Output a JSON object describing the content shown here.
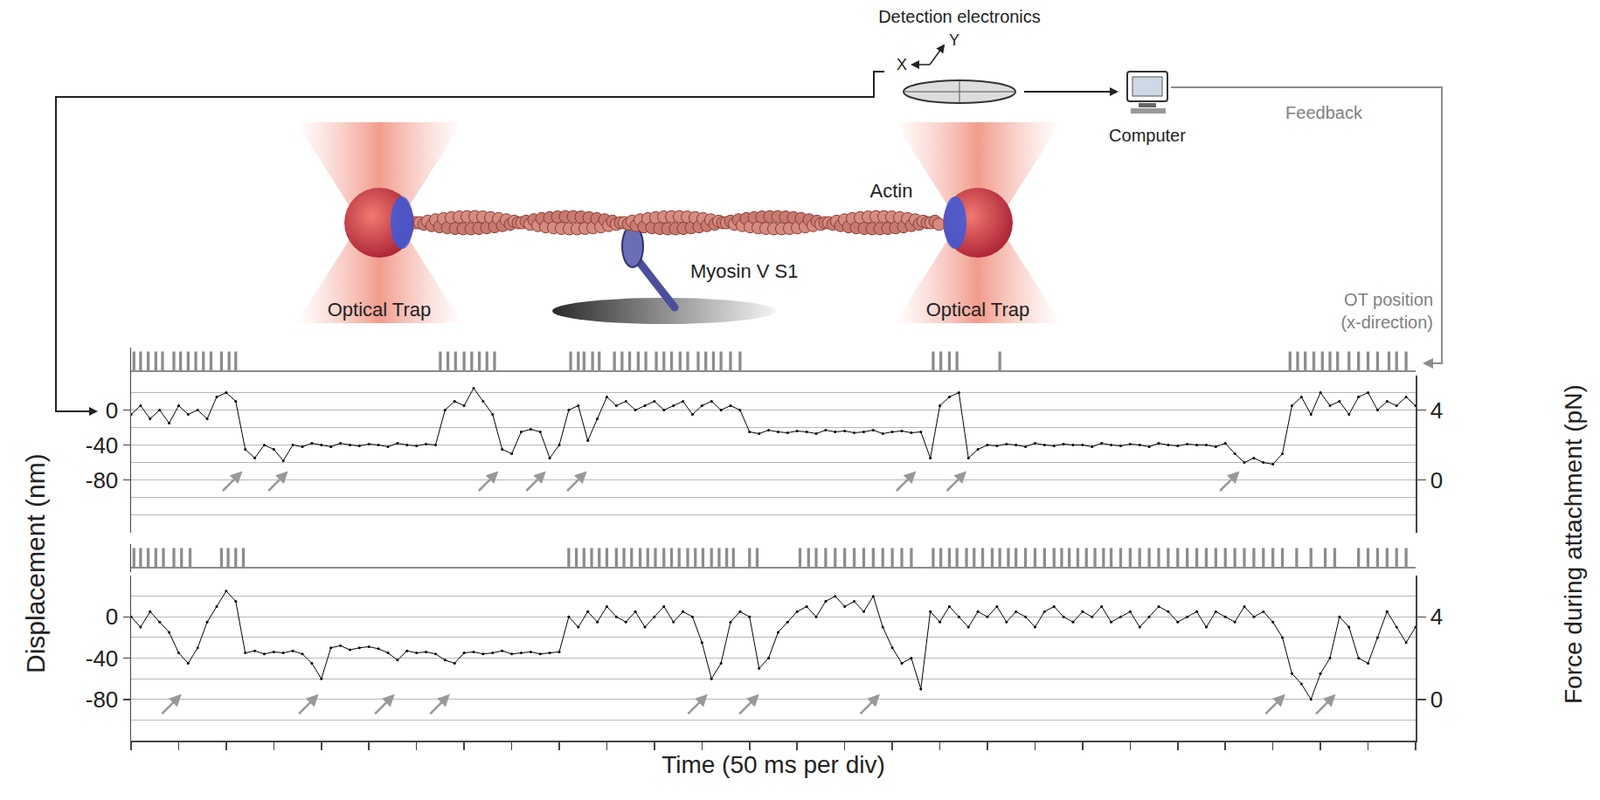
{
  "chart_data": {
    "type": "scatter",
    "xlabel": "Time (50 ms per div)",
    "ylabel": "Displacement (nm)",
    "y2label": "Force during attachment (pN)",
    "xlim": [
      0,
      1350
    ],
    "xticks": [
      0,
      50,
      100,
      150,
      200,
      250,
      300,
      350,
      400,
      450,
      500,
      550,
      600,
      650,
      700,
      750,
      800,
      850,
      900,
      950,
      1000,
      1050,
      1100,
      1150,
      1200,
      1250,
      1300,
      1350
    ],
    "tick_labels": "y",
    "grid": true,
    "panels": [
      {
        "ylim": [
          -140,
          40
        ],
        "yticks": [
          -80,
          -40,
          0
        ],
        "y2lim": [
          -3,
          6
        ],
        "y2ticks": [
          0,
          4
        ],
        "y3lim": [
          -0.2,
          1.2
        ],
        "series": [
          {
            "color": "#000000",
            "marker": "dot",
            "line_style": "solid",
            "x": [
              0,
              10,
              20,
              30,
              40,
              50,
              60,
              70,
              80,
              90,
              100,
              110,
              120,
              130,
              140,
              150,
              160,
              170,
              180,
              190,
              200,
              210,
              220,
              230,
              240,
              250,
              260,
              270,
              280,
              290,
              300,
              310,
              320,
              330,
              340,
              350,
              360,
              370,
              380,
              390,
              400,
              410,
              420,
              430,
              440,
              450,
              460,
              470,
              480,
              490,
              500,
              510,
              520,
              530,
              540,
              550,
              560,
              570,
              580,
              590,
              600,
              610,
              620,
              630,
              640,
              650,
              660,
              670,
              680,
              690,
              700,
              710,
              720,
              730,
              740,
              750,
              760,
              770,
              780,
              790,
              800,
              810,
              820,
              830,
              840,
              850,
              860,
              870,
              880,
              890,
              900,
              910,
              920,
              930,
              940,
              950,
              960,
              970,
              980,
              990,
              1000,
              1010,
              1020,
              1030,
              1040,
              1050,
              1060,
              1070,
              1080,
              1090,
              1100,
              1110,
              1120,
              1130,
              1140,
              1150,
              1160,
              1170,
              1180,
              1190,
              1200,
              1210,
              1220,
              1230,
              1240,
              1250,
              1260,
              1270,
              1280,
              1290,
              1300,
              1310,
              1320,
              1330,
              1340,
              1350
            ],
            "values": [
              -5,
              5,
              -10,
              0,
              -15,
              5,
              -5,
              0,
              -10,
              15,
              20,
              10,
              -45,
              -55,
              -40,
              -45,
              -58,
              -40,
              -42,
              -38,
              -40,
              -42,
              -38,
              -40,
              -41,
              -39,
              -40,
              -42,
              -38,
              -40,
              -41,
              -39,
              -40,
              0,
              10,
              5,
              25,
              10,
              -5,
              -45,
              -50,
              -25,
              -22,
              -25,
              -55,
              -40,
              0,
              5,
              -35,
              -10,
              15,
              5,
              10,
              0,
              5,
              10,
              0,
              5,
              10,
              -5,
              5,
              10,
              0,
              5,
              0,
              -25,
              -27,
              -23,
              -25,
              -26,
              -24,
              -25,
              -27,
              -23,
              -25,
              -24,
              -26,
              -25,
              -23,
              -27,
              -25,
              -24,
              -26,
              -25,
              -55,
              5,
              15,
              20,
              -55,
              -45,
              -40,
              -41,
              -39,
              -40,
              -42,
              -38,
              -40,
              -41,
              -39,
              -40,
              -40,
              -42,
              -38,
              -40,
              -41,
              -39,
              -40,
              -42,
              -38,
              -40,
              -41,
              -39,
              -40,
              -40,
              -42,
              -38,
              -50,
              -60,
              -55,
              -60,
              -62,
              -50,
              5,
              15,
              -5,
              20,
              5,
              10,
              -5,
              15,
              20,
              0,
              10,
              5,
              15,
              5
            ]
          },
          {
            "type": "bar",
            "color": "#8c8c8c",
            "x": [
              3,
              10,
              18,
              26,
              33,
              45,
              52,
              60,
              68,
              76,
              84,
              95,
              103,
              110,
              325,
              333,
              341,
              350,
              358,
              366,
              374,
              382,
              462,
              470,
              476,
              485,
              492,
              508,
              516,
              524,
              533,
              541,
              552,
              560,
              568,
              577,
              585,
              596,
              604,
              612,
              620,
              630,
              640,
              843,
              851,
              860,
              868,
              913,
              1218,
              1226,
              1234,
              1243,
              1252,
              1260,
              1268,
              1280,
              1290,
              1300,
              1310,
              1322,
              1330,
              1340
            ],
            "values": [
              1,
              1,
              1,
              1,
              1,
              1,
              1,
              1,
              1,
              1,
              1,
              1,
              1,
              1,
              1,
              1,
              1,
              1,
              1,
              1,
              1,
              1,
              1,
              1,
              1,
              1,
              1,
              1,
              1,
              1,
              1,
              1,
              1,
              1,
              1,
              1,
              1,
              1,
              1,
              1,
              1,
              1,
              1,
              1,
              1,
              1,
              1,
              1,
              1,
              1,
              1,
              1,
              1,
              1,
              1,
              1,
              1,
              1,
              1,
              1,
              1,
              1
            ]
          }
        ],
        "arrows": {
          "color": "#999999",
          "x": [
            117,
            165,
            386,
            436,
            479,
            825,
            878,
            1165
          ],
          "y": [
            -70,
            -70,
            -70,
            -70,
            -70,
            -70,
            -70,
            -70
          ]
        }
      },
      {
        "ylim": [
          -120,
          40
        ],
        "yticks": [
          -80,
          -40,
          0
        ],
        "y2lim": [
          -2,
          6
        ],
        "y2ticks": [
          0,
          4
        ],
        "y3lim": [
          -0.2,
          1.2
        ],
        "series": [
          {
            "color": "#000000",
            "marker": "dot",
            "line_style": "solid",
            "x": [
              0,
              10,
              20,
              30,
              40,
              50,
              60,
              70,
              80,
              90,
              100,
              110,
              120,
              130,
              140,
              150,
              160,
              170,
              180,
              190,
              200,
              210,
              220,
              230,
              240,
              250,
              260,
              270,
              280,
              290,
              300,
              310,
              320,
              330,
              340,
              350,
              360,
              370,
              380,
              390,
              400,
              410,
              420,
              430,
              440,
              450,
              460,
              470,
              480,
              490,
              500,
              510,
              520,
              530,
              540,
              550,
              560,
              570,
              580,
              590,
              600,
              610,
              620,
              630,
              640,
              650,
              660,
              670,
              680,
              690,
              700,
              710,
              720,
              730,
              740,
              750,
              760,
              770,
              780,
              790,
              800,
              810,
              820,
              830,
              840,
              850,
              860,
              870,
              880,
              890,
              900,
              910,
              920,
              930,
              940,
              950,
              960,
              970,
              980,
              990,
              1000,
              1010,
              1020,
              1030,
              1040,
              1050,
              1060,
              1070,
              1080,
              1090,
              1100,
              1110,
              1120,
              1130,
              1140,
              1150,
              1160,
              1170,
              1180,
              1190,
              1200,
              1210,
              1220,
              1230,
              1240,
              1250,
              1260,
              1270,
              1280,
              1290,
              1300,
              1310,
              1320,
              1330,
              1340,
              1350
            ],
            "values": [
              0,
              -10,
              5,
              -5,
              -15,
              -35,
              -45,
              -30,
              -5,
              10,
              25,
              15,
              -35,
              -33,
              -36,
              -34,
              -35,
              -33,
              -36,
              -45,
              -60,
              -30,
              -28,
              -32,
              -30,
              -29,
              -31,
              -35,
              -42,
              -33,
              -35,
              -34,
              -36,
              -42,
              -45,
              -35,
              -34,
              -36,
              -35,
              -33,
              -36,
              -35,
              -34,
              -36,
              -35,
              -34,
              0,
              -10,
              5,
              -5,
              10,
              0,
              -5,
              5,
              -10,
              0,
              10,
              -5,
              5,
              0,
              -25,
              -60,
              -45,
              -5,
              5,
              0,
              -50,
              -40,
              -15,
              -5,
              5,
              10,
              0,
              15,
              20,
              10,
              15,
              5,
              20,
              -10,
              -30,
              -45,
              -40,
              -70,
              5,
              -5,
              10,
              0,
              -10,
              5,
              0,
              10,
              -5,
              5,
              0,
              -10,
              5,
              10,
              0,
              -5,
              5,
              0,
              10,
              -5,
              0,
              5,
              -10,
              0,
              10,
              5,
              -5,
              0,
              5,
              -10,
              5,
              0,
              -5,
              10,
              0,
              5,
              -5,
              -20,
              -55,
              -65,
              -80,
              -55,
              -40,
              0,
              -10,
              -40,
              -45,
              -20,
              5,
              -10,
              -25,
              -10
            ]
          },
          {
            "type": "bar",
            "color": "#8c8c8c",
            "x": [
              3,
              10,
              18,
              26,
              34,
              45,
              53,
              62,
              95,
              102,
              110,
              118,
              460,
              468,
              476,
              484,
              492,
              500,
              510,
              518,
              526,
              535,
              543,
              551,
              560,
              568,
              576,
              585,
              593,
              601,
              610,
              618,
              626,
              633,
              650,
              658,
              703,
              712,
              720,
              730,
              740,
              750,
              760,
              770,
              780,
              790,
              800,
              810,
              820,
              843,
              851,
              860,
              868,
              878,
              886,
              895,
              905,
              913,
              922,
              930,
              940,
              950,
              960,
              970,
              978,
              986,
              995,
              1004,
              1013,
              1022,
              1030,
              1040,
              1050,
              1060,
              1070,
              1080,
              1090,
              1100,
              1110,
              1120,
              1130,
              1140,
              1150,
              1160,
              1170,
              1180,
              1190,
              1200,
              1210,
              1225,
              1240,
              1255,
              1265,
              1290,
              1300,
              1310,
              1320,
              1330,
              1340
            ],
            "values": [
              1,
              1,
              1,
              1,
              1,
              1,
              1,
              1,
              1,
              1,
              1,
              1,
              1,
              1,
              1,
              1,
              1,
              1,
              1,
              1,
              1,
              1,
              1,
              1,
              1,
              1,
              1,
              1,
              1,
              1,
              1,
              1,
              1,
              1,
              1,
              1,
              1,
              1,
              1,
              1,
              1,
              1,
              1,
              1,
              1,
              1,
              1,
              1,
              1,
              1,
              1,
              1,
              1,
              1,
              1,
              1,
              1,
              1,
              1,
              1,
              1,
              1,
              1,
              1,
              1,
              1,
              1,
              1,
              1,
              1,
              1,
              1,
              1,
              1,
              1,
              1,
              1,
              1,
              1,
              1,
              1,
              1,
              1,
              1,
              1,
              1,
              1,
              1,
              1,
              1,
              1,
              1,
              1,
              1,
              1,
              1,
              1,
              1,
              1
            ]
          }
        ],
        "arrows": {
          "color": "#999999",
          "x": [
            53,
            197,
            277,
            335,
            606,
            660,
            787,
            1213,
            1266
          ],
          "y": [
            -75,
            -75,
            -75,
            -75,
            -75,
            -75,
            -75,
            -75,
            -75
          ]
        }
      }
    ]
  },
  "diagram": {
    "detector": {
      "label": "Detection electronics",
      "axes": [
        "X",
        "Y"
      ]
    },
    "computer": "Computer",
    "feedback": "Feedback",
    "filament": "Actin",
    "motor": "Myosin V S1",
    "traps": [
      "Optical Trap",
      "Optical Trap"
    ],
    "trace_label": "OT position (x-direction)"
  }
}
